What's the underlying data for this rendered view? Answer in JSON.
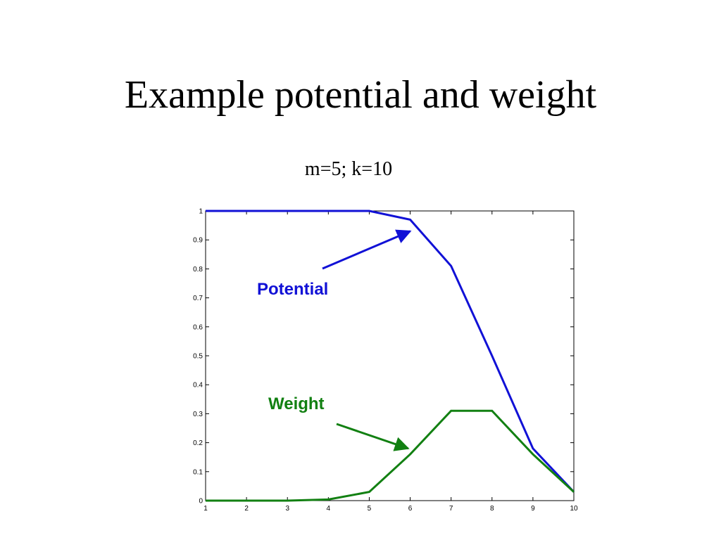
{
  "slide": {
    "title": "Example potential and weight",
    "subtitle": "m=5; k=10"
  },
  "chart_data": {
    "type": "line",
    "title": "",
    "xlabel": "",
    "ylabel": "",
    "x": [
      1,
      2,
      3,
      4,
      5,
      6,
      7,
      8,
      9,
      10
    ],
    "xlim": [
      1,
      10
    ],
    "ylim": [
      0,
      1
    ],
    "x_ticks": [
      "1",
      "2",
      "3",
      "4",
      "5",
      "6",
      "7",
      "8",
      "9",
      "10"
    ],
    "y_ticks": [
      "0",
      "0.1",
      "0.2",
      "0.3",
      "0.4",
      "0.5",
      "0.6",
      "0.7",
      "0.8",
      "0.9",
      "1"
    ],
    "grid": false,
    "series": [
      {
        "name": "Potential",
        "color": "#1111d6",
        "values": [
          1,
          1,
          1,
          1,
          1,
          0.97,
          0.81,
          0.5,
          0.18,
          0.03
        ]
      },
      {
        "name": "Weight",
        "color": "#128012",
        "values": [
          0,
          0,
          0,
          0.004,
          0.03,
          0.16,
          0.31,
          0.31,
          0.16,
          0.03
        ]
      }
    ],
    "annotations": [
      {
        "text": "Potential",
        "color": "#1111d6",
        "arrow_to": {
          "x": 6,
          "y": 0.93
        }
      },
      {
        "text": "Weight",
        "color": "#128012",
        "arrow_to": {
          "x": 5.95,
          "y": 0.18
        }
      }
    ]
  }
}
